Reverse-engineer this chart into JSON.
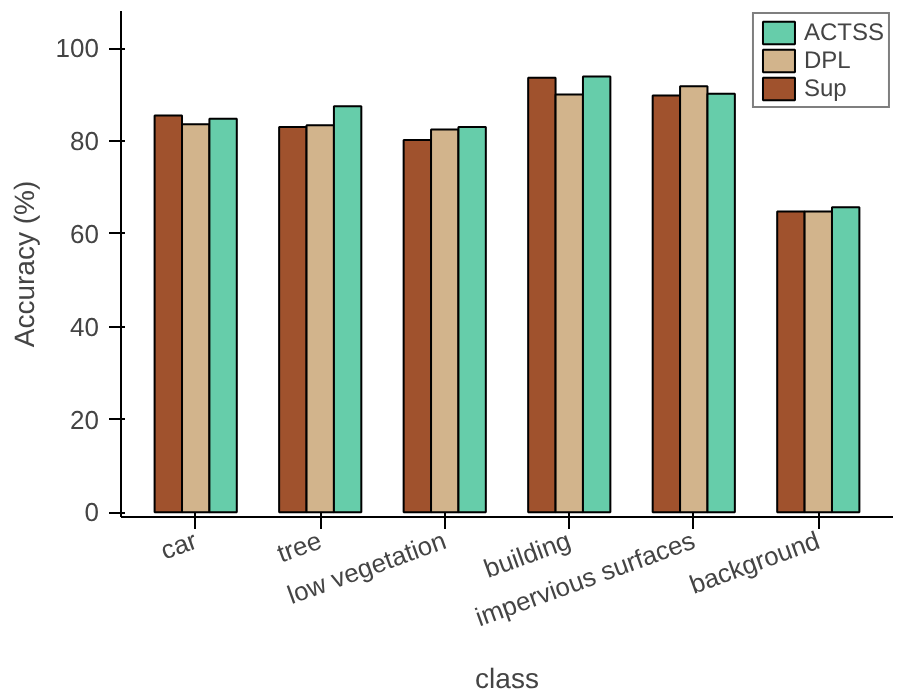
{
  "chart_data": {
    "type": "bar",
    "xlabel": "class",
    "ylabel": "Accuracy (%)",
    "categories": [
      "car",
      "tree",
      "low vegetation",
      "building",
      "impervious surfaces",
      "background"
    ],
    "series": [
      {
        "name": "Sup",
        "color": "#a0522d",
        "values": [
          85.5,
          83.0,
          80.2,
          93.6,
          89.8,
          64.8
        ]
      },
      {
        "name": "DPL",
        "color": "#d2b48c",
        "values": [
          83.6,
          83.4,
          82.5,
          90.0,
          91.8,
          64.8
        ]
      },
      {
        "name": "ACTSS",
        "color": "#66cdaa",
        "values": [
          84.8,
          87.5,
          83.0,
          93.9,
          90.2,
          65.7
        ]
      }
    ],
    "ylim": [
      -1,
      108
    ],
    "yticks": [
      0,
      20,
      40,
      60,
      80,
      100
    ],
    "grid": false,
    "legend": "top right"
  }
}
